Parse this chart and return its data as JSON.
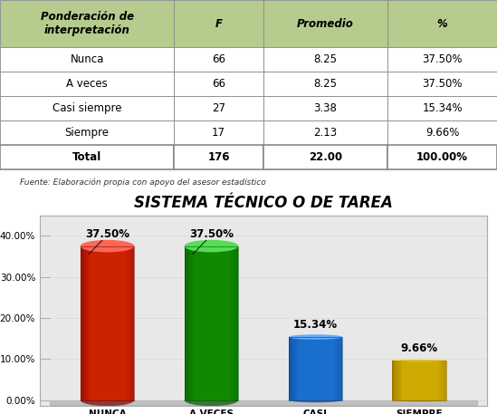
{
  "title": "SISTEMA TÉCNICO O DE TAREA",
  "categories": [
    "NUNCA",
    "A VECES",
    "CASI\nSIEMPRE",
    "SIEMPRE"
  ],
  "values": [
    37.5,
    37.5,
    15.34,
    9.66
  ],
  "labels": [
    "37.50%",
    "37.50%",
    "15.34%",
    "9.66%"
  ],
  "bar_colors": [
    "#cc2200",
    "#118800",
    "#1a6fcc",
    "#ccaa00"
  ],
  "bar_light_colors": [
    "#ff6655",
    "#55dd55",
    "#66aaff",
    "#ffdd55"
  ],
  "bar_dark_colors": [
    "#770000",
    "#005500",
    "#0a3f88",
    "#886600"
  ],
  "table_header": [
    "Ponderación de\ninterpretación",
    "F",
    "Promedio",
    "%"
  ],
  "table_rows": [
    [
      "Nunca",
      "66",
      "8.25",
      "37.50%"
    ],
    [
      "A veces",
      "66",
      "8.25",
      "37.50%"
    ],
    [
      "Casi siempre",
      "27",
      "3.38",
      "15.34%"
    ],
    [
      "Siempre",
      "17",
      "2.13",
      "9.66%"
    ],
    [
      "Total",
      "176",
      "22.00",
      "100.00%"
    ]
  ],
  "source_text": "Fuente: Elaboración propia con apoyo del asesor estadístico",
  "header_bg_color": "#b5cc8e",
  "ylim": [
    0,
    45
  ],
  "yticks": [
    0,
    10,
    20,
    30,
    40
  ],
  "yticklabels": [
    "0.00%",
    "10.00%",
    "20.00%",
    "30.00%",
    "40.00%"
  ],
  "chart_bg_color": "#e8e8e8",
  "floor_color": "#c0c0c0",
  "title_fontsize": 12,
  "label_fontsize": 8.5,
  "tick_fontsize": 7.5,
  "table_fontsize": 8.5
}
